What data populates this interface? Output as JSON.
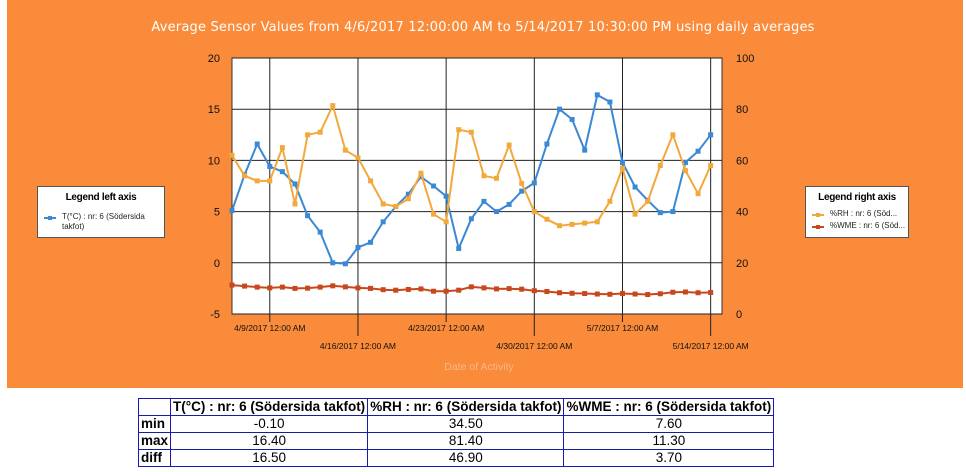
{
  "chart_data": {
    "type": "line",
    "title": "Average Sensor Values from 4/6/2017 12:00:00 AM to 5/14/2017 10:30:00 PM using daily averages",
    "xlabel": "Date of Activity",
    "xlim": [
      0,
      38.9
    ],
    "x_ticks_upper": [
      {
        "x": 3,
        "label": "4/9/2017 12:00 AM"
      },
      {
        "x": 17,
        "label": "4/23/2017 12:00 AM"
      },
      {
        "x": 31,
        "label": "5/7/2017 12:00 AM"
      }
    ],
    "x_ticks_lower": [
      {
        "x": 10,
        "label": "4/16/2017 12:00 AM"
      },
      {
        "x": 24,
        "label": "4/30/2017 12:00 AM"
      },
      {
        "x": 38,
        "label": "5/14/2017 12:00 AM"
      }
    ],
    "left_axis": {
      "ylim": [
        -5,
        20
      ],
      "ticks": [
        -5,
        0,
        5,
        10,
        15,
        20
      ]
    },
    "right_axis": {
      "ylim": [
        0,
        100
      ],
      "ticks": [
        0,
        20,
        40,
        60,
        80,
        100
      ]
    },
    "legend_left": {
      "title": "Legend left axis"
    },
    "legend_right": {
      "title": "Legend right axis"
    },
    "series": [
      {
        "name": "T(°C) : nr: 6 (Södersida takfot)",
        "legend_lines": [
          "T(°C) : nr: 6 (Södersida",
          "takfot)"
        ],
        "axis": "left",
        "color": "#3B88D4",
        "values": [
          5.1,
          8.6,
          11.6,
          9.4,
          8.9,
          7.7,
          4.6,
          3.0,
          0.0,
          -0.1,
          1.5,
          2.0,
          4.0,
          5.5,
          6.7,
          8.4,
          7.5,
          6.5,
          1.4,
          4.3,
          6.0,
          5.0,
          5.7,
          7.0,
          7.8,
          11.6,
          15.0,
          14.0,
          11.0,
          16.4,
          15.7,
          9.8,
          7.4,
          6.1,
          4.9,
          5.0,
          9.8,
          10.9,
          12.5
        ]
      },
      {
        "name": "%RH : nr: 6 (Södersida takfot)",
        "legend_lines": [
          "%RH : nr: 6 (Söd..."
        ],
        "axis": "right",
        "color": "#F2A93B",
        "values": [
          62,
          54,
          52,
          52,
          65,
          43,
          70,
          71,
          81.4,
          64,
          61,
          52,
          43,
          42,
          45,
          55,
          39,
          36,
          72,
          71,
          54,
          53,
          66,
          51,
          40,
          37,
          34.5,
          35,
          35.5,
          36,
          44,
          57,
          39,
          44,
          58,
          70,
          56,
          47,
          58
        ]
      },
      {
        "name": "%WME : nr: 6 (Södersida takfot)",
        "legend_lines": [
          "%WME : nr: 6 (Söd..."
        ],
        "axis": "right",
        "color": "#C8471C",
        "values": [
          11.3,
          10.9,
          10.5,
          10.2,
          10.5,
          10.0,
          10.1,
          10.5,
          11.0,
          10.6,
          10.2,
          10.0,
          9.5,
          9.3,
          9.6,
          9.8,
          8.9,
          8.9,
          9.3,
          10.6,
          10.2,
          9.8,
          9.9,
          9.7,
          9.1,
          8.8,
          8.3,
          8.1,
          8.0,
          7.8,
          7.7,
          8.0,
          7.8,
          7.6,
          7.9,
          8.5,
          8.6,
          8.3,
          8.4
        ]
      }
    ]
  },
  "stats_table": {
    "headers": [
      "T(°C) : nr: 6 (Södersida takfot)",
      "%RH : nr: 6 (Södersida takfot)",
      "%WME : nr: 6 (Södersida takfot)"
    ],
    "rows": [
      {
        "label": "min",
        "values": [
          "-0.10",
          "34.50",
          "7.60"
        ]
      },
      {
        "label": "max",
        "values": [
          "16.40",
          "81.40",
          "11.30"
        ]
      },
      {
        "label": "diff",
        "values": [
          "16.50",
          "46.90",
          "3.70"
        ]
      }
    ]
  },
  "colors": {
    "panel_background": "#F98B3A",
    "plot_background": "#FFFFFF",
    "table_border": "#1A1AA8"
  }
}
